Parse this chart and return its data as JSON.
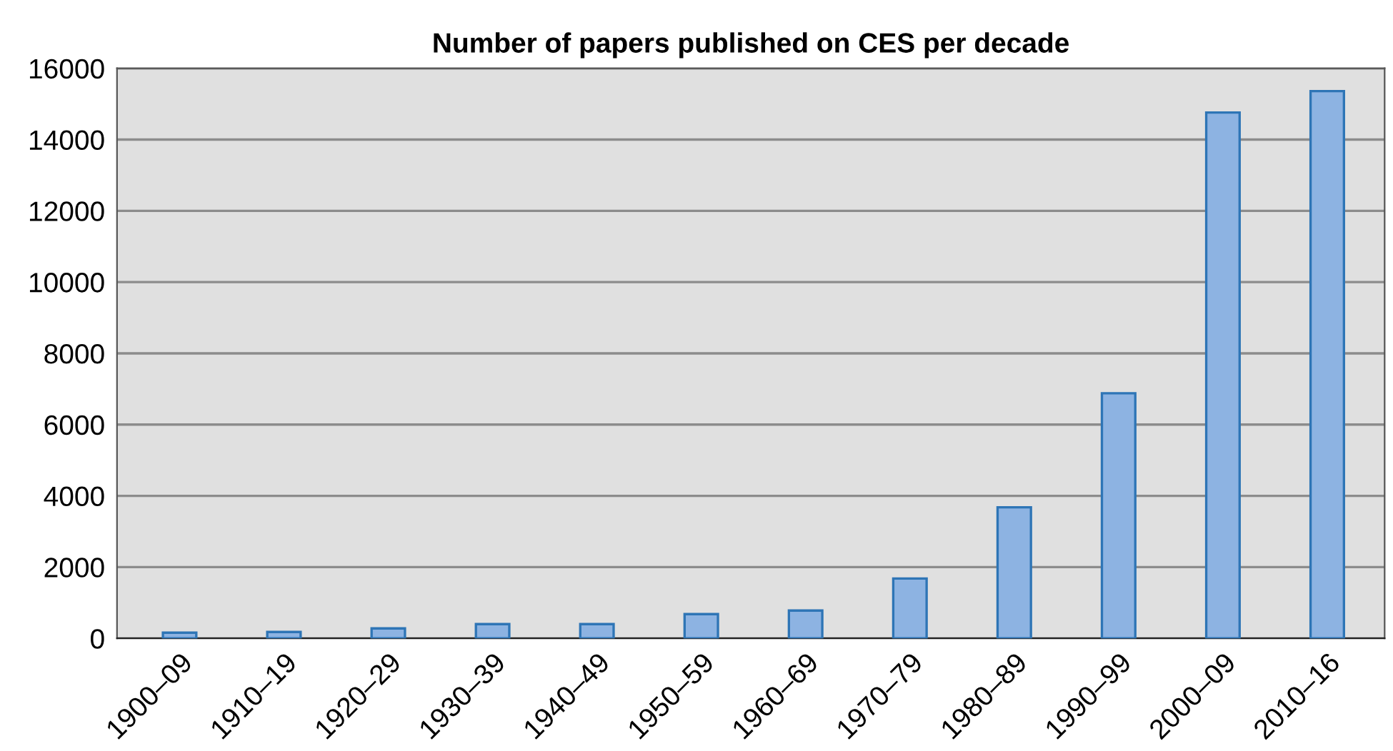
{
  "chart_data": {
    "type": "bar",
    "title": "Number of papers published on CES per decade",
    "categories": [
      "1900–09",
      "1910–19",
      "1920–29",
      "1930–39",
      "1940–49",
      "1950–59",
      "1960–69",
      "1970–79",
      "1980–89",
      "1990–99",
      "2000–09",
      "2010–16"
    ],
    "values": [
      160,
      180,
      280,
      400,
      400,
      680,
      780,
      1680,
      3680,
      6880,
      14760,
      15360
    ],
    "color": "#8db3e2",
    "ylim": [
      0,
      16000
    ],
    "yticks": [
      0,
      2000,
      4000,
      6000,
      8000,
      10000,
      12000,
      14000,
      16000
    ],
    "grid": "y"
  }
}
